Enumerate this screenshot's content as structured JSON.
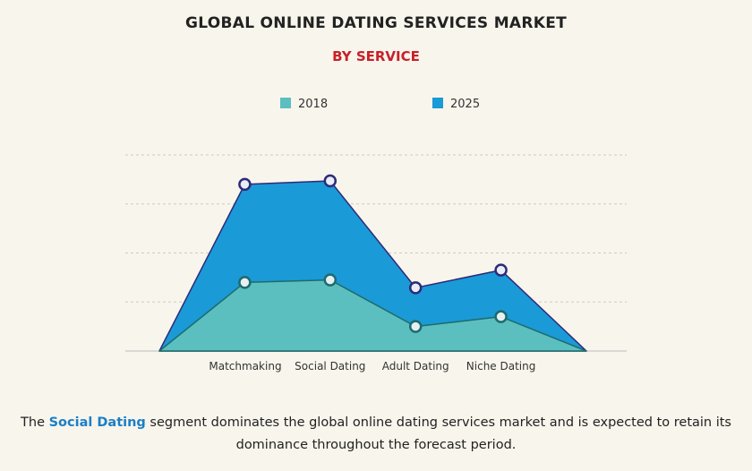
{
  "chart_data": {
    "type": "area",
    "title": "GLOBAL ONLINE DATING SERVICES MARKET",
    "subtitle": "BY SERVICE",
    "categories": [
      null,
      "Matchmaking",
      "Social Dating",
      "Adult Dating",
      "Niche Dating",
      null
    ],
    "series": [
      {
        "name": "2018",
        "color": "#5bbfbf",
        "line_color": "#1e6b6b",
        "values": [
          0,
          1.4,
          1.45,
          0.5,
          0.7,
          0
        ]
      },
      {
        "name": "2025",
        "color": "#1a9ad6",
        "line_color": "#2e2a7a",
        "values": [
          0,
          3.4,
          3.47,
          1.29,
          1.65,
          0
        ]
      }
    ],
    "ylim": [
      0,
      4
    ],
    "yticks": [
      0,
      1,
      2,
      3,
      4
    ],
    "grid": true,
    "caption": {
      "before": "The",
      "highlight": "Social Dating",
      "after": "segment dominates the global online dating services market and is expected to retain its dominance throughout the forecast period."
    }
  }
}
